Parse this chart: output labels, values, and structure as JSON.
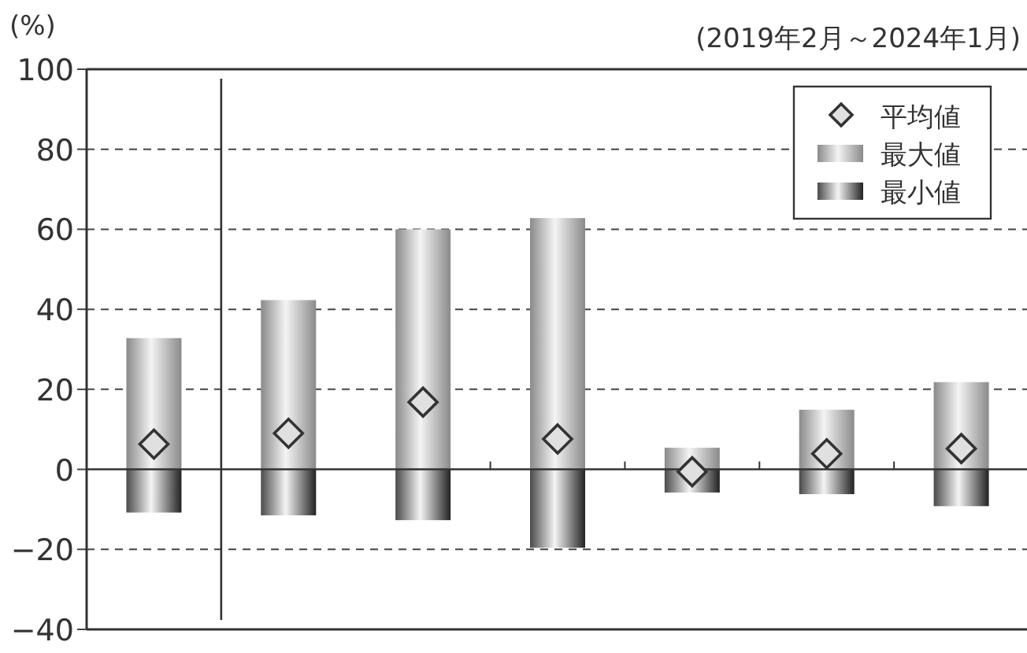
{
  "chart_data": {
    "type": "bar",
    "subtitle": "(2019年2月～2024年1月)",
    "ylabel": "(%)",
    "categories": [
      null,
      null,
      null,
      null,
      null,
      null,
      null
    ],
    "stacked": true,
    "series": [
      {
        "name": "平均値",
        "type": "scatter",
        "marker": "diamond",
        "color": "#e0e0e0",
        "values": [
          6.3,
          9.0,
          16.8,
          7.6,
          -0.6,
          3.9,
          5.2
        ]
      },
      {
        "name": "最大値",
        "color": "#8a8a8a",
        "values": [
          32.8,
          42.3,
          60.0,
          62.8,
          5.4,
          14.9,
          21.8
        ]
      },
      {
        "name": "最小値",
        "color": "#4a4a4a",
        "values": [
          -10.8,
          -11.5,
          -12.7,
          -19.6,
          -5.8,
          -6.2,
          -9.2
        ]
      }
    ],
    "ylim": [
      -40,
      100
    ],
    "yticks": [
      {
        "value": -40,
        "label": "−40"
      },
      {
        "value": -20,
        "label": "−20"
      },
      0,
      20,
      40,
      60,
      80,
      100
    ],
    "grid": "y",
    "legend": "top right",
    "tick_labels": "y"
  }
}
